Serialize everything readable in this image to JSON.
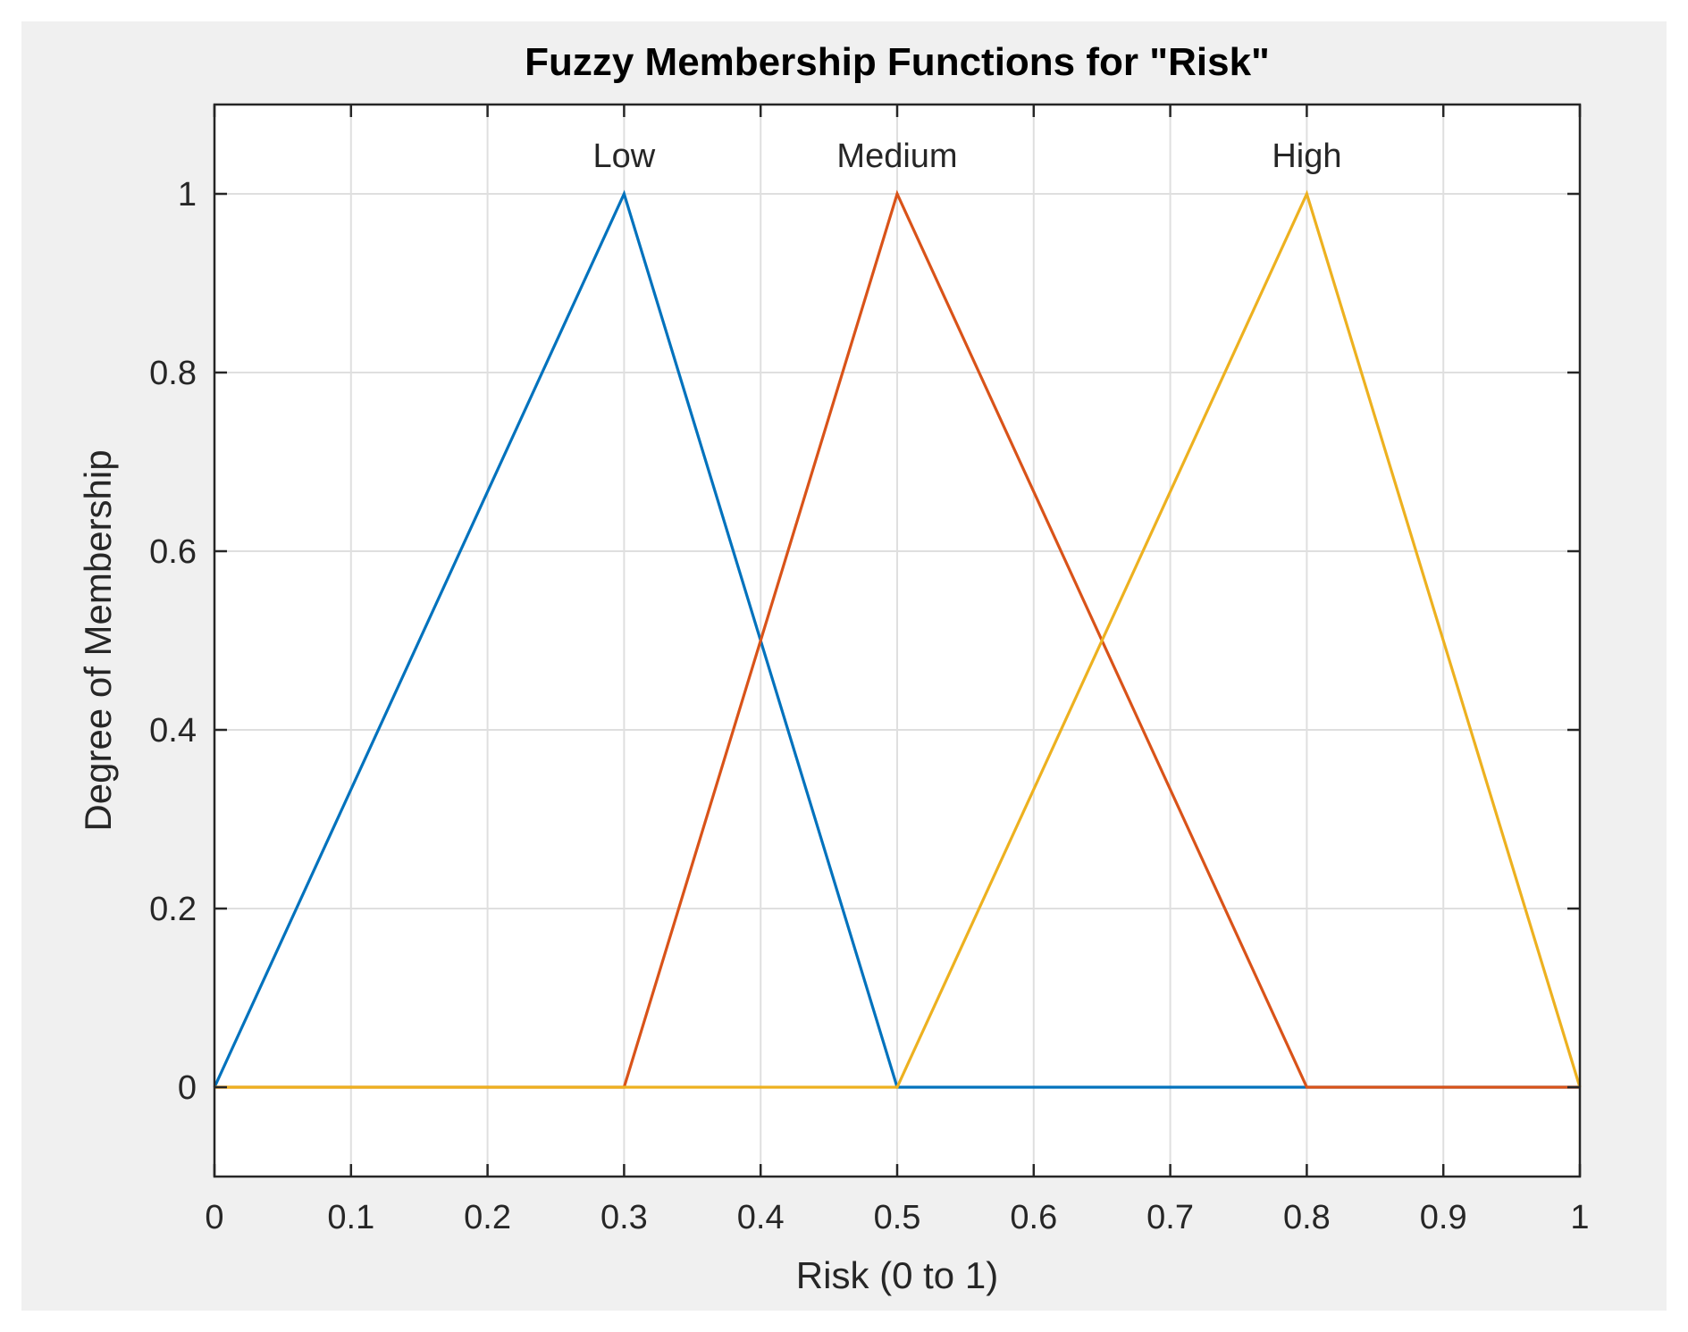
{
  "chart_data": {
    "type": "line",
    "title": "Fuzzy Membership Functions for \"Risk\"",
    "xlabel": "Risk (0 to 1)",
    "ylabel": "Degree of Membership",
    "xlim": [
      0,
      1
    ],
    "ylim": [
      -0.1,
      1.1
    ],
    "xticks": [
      0,
      0.1,
      0.2,
      0.3,
      0.4,
      0.5,
      0.6,
      0.7,
      0.8,
      0.9,
      1
    ],
    "xtick_labels": [
      "0",
      "0.1",
      "0.2",
      "0.3",
      "0.4",
      "0.5",
      "0.6",
      "0.7",
      "0.8",
      "0.9",
      "1"
    ],
    "yticks": [
      0,
      0.2,
      0.4,
      0.6,
      0.8,
      1
    ],
    "ytick_labels": [
      "0",
      "0.2",
      "0.4",
      "0.6",
      "0.8",
      "1"
    ],
    "grid": true,
    "series": [
      {
        "name": "Low",
        "color": "#0072BD",
        "x": [
          0,
          0.3,
          0.5,
          1
        ],
        "y": [
          0,
          1,
          0,
          0
        ],
        "label_at": [
          0.3,
          1
        ]
      },
      {
        "name": "Medium",
        "color": "#D95319",
        "x": [
          0,
          0.3,
          0.5,
          0.8,
          1
        ],
        "y": [
          0,
          0,
          1,
          0,
          0
        ],
        "label_at": [
          0.5,
          1
        ]
      },
      {
        "name": "High",
        "color": "#EDB120",
        "x": [
          0,
          0.5,
          0.8,
          1
        ],
        "y": [
          0,
          0,
          1,
          0
        ],
        "label_at": [
          0.8,
          1
        ]
      }
    ]
  }
}
